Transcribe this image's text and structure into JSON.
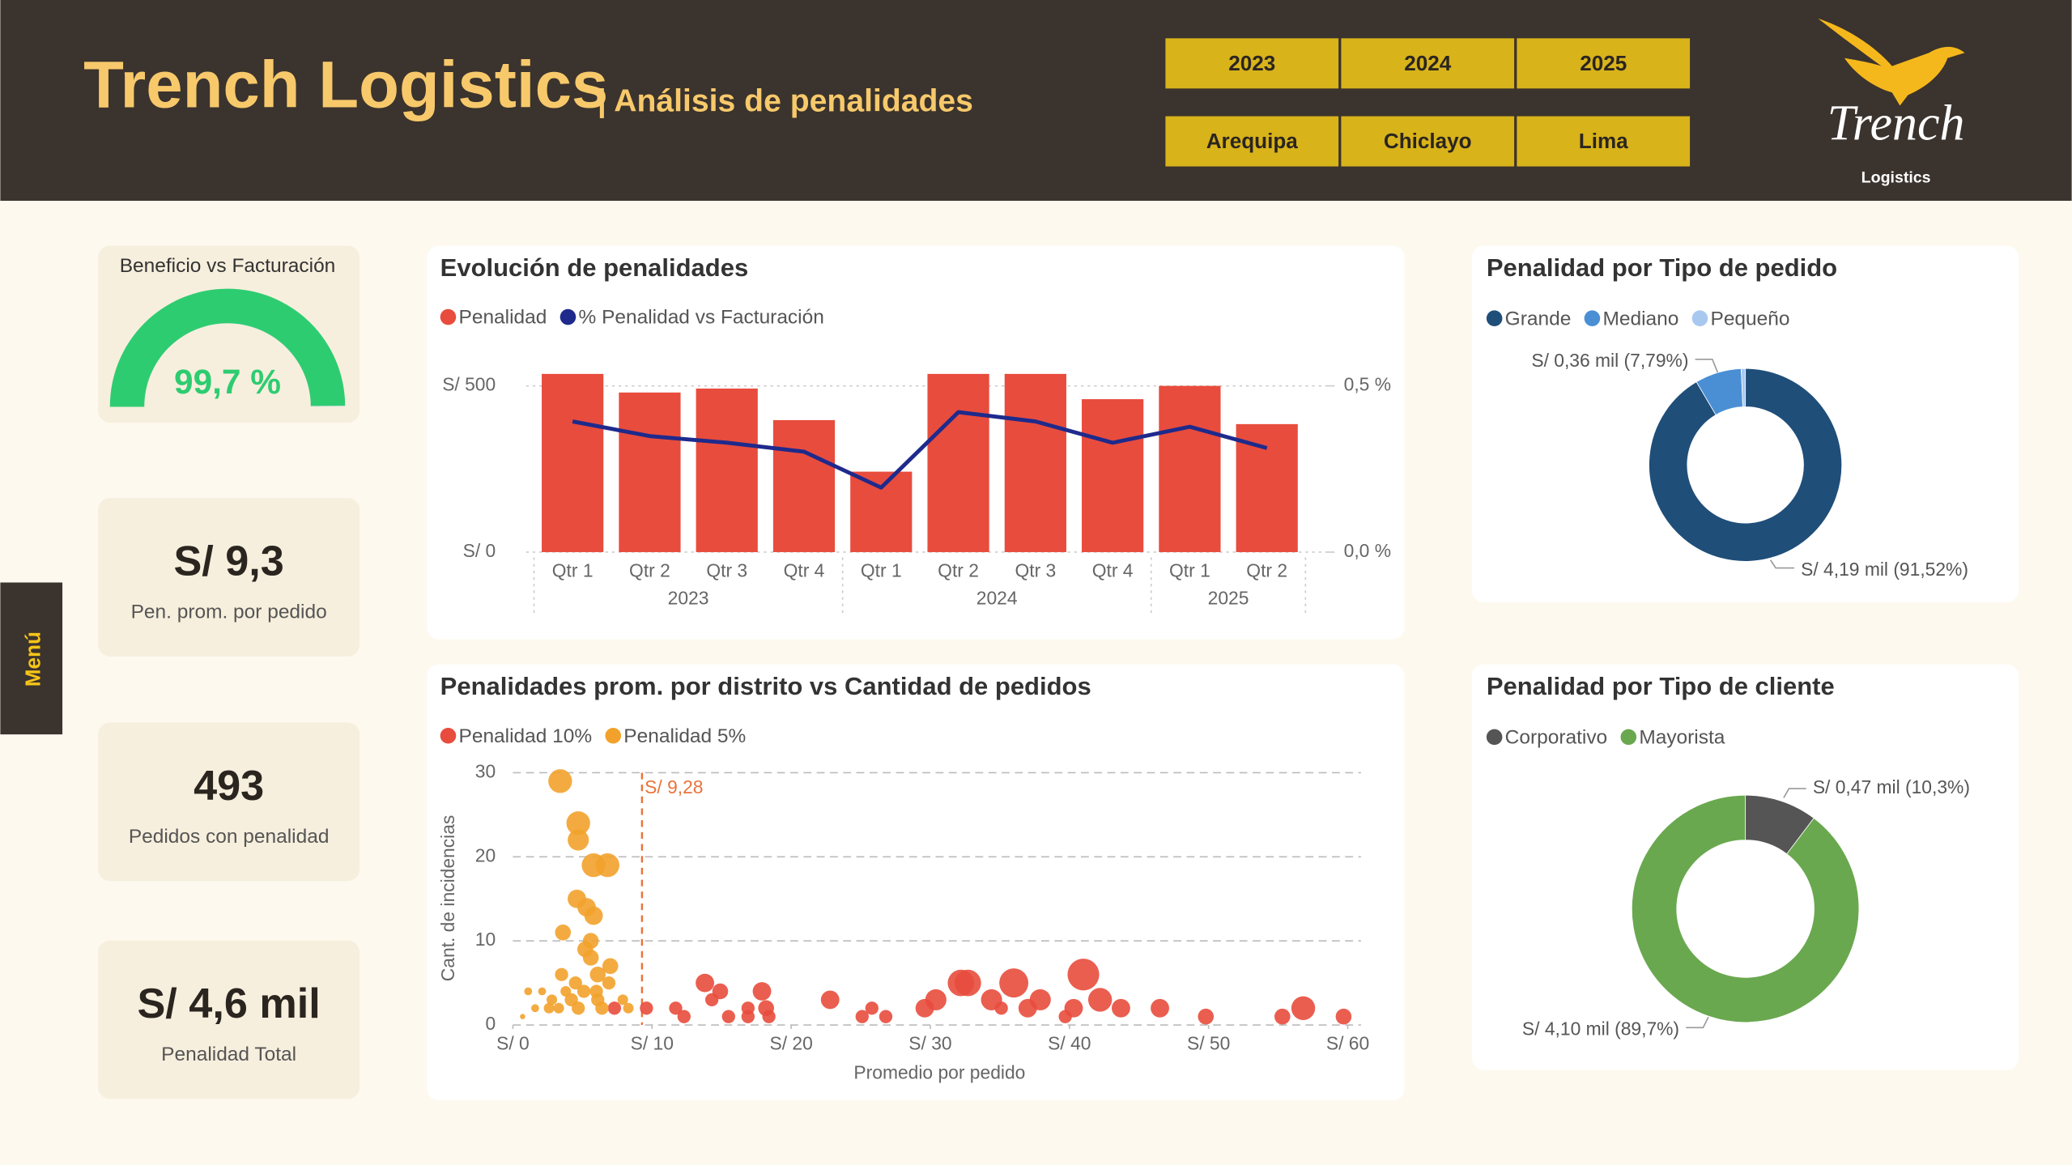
{
  "header": {
    "title": "Trench Logistics",
    "subtitle": "| Análisis de penalidades",
    "logo_name": "Trench",
    "logo_tagline": "Logistics"
  },
  "filters": {
    "years": [
      "2023",
      "2024",
      "2025"
    ],
    "cities": [
      "Arequipa",
      "Chiclayo",
      "Lima"
    ]
  },
  "menu": "Menú",
  "kpis": [
    {
      "value": "S/ 9,3",
      "label": "Pen. prom. por pedido"
    },
    {
      "value": "493",
      "label": "Pedidos con penalidad"
    },
    {
      "value": "S/ 4,6 mil",
      "label": "Penalidad Total"
    }
  ],
  "chart_data": [
    {
      "type": "gauge",
      "title": "Beneficio vs Facturación",
      "value": 99.7,
      "value_label": "99,7 %",
      "ylim": [
        0,
        100
      ],
      "color": "#2ecc71"
    },
    {
      "type": "combo",
      "title": "Evolución de penalidades",
      "categories": [
        "Qtr 1",
        "Qtr 2",
        "Qtr 3",
        "Qtr 4",
        "Qtr 1",
        "Qtr 2",
        "Qtr 3",
        "Qtr 4",
        "Qtr 1",
        "Qtr 2"
      ],
      "category_groups": [
        "2023",
        "2023",
        "2023",
        "2023",
        "2024",
        "2024",
        "2024",
        "2024",
        "2025",
        "2025"
      ],
      "series": [
        {
          "name": "Penalidad",
          "type": "bar",
          "color": "#e84c3d",
          "values": [
            536,
            480,
            492,
            397,
            242,
            536,
            536,
            460,
            500,
            385
          ]
        },
        {
          "name": "% Penalidad vs Facturación",
          "type": "line",
          "axis": "y2",
          "color": "#1e2a8c",
          "values": [
            0.393,
            0.349,
            0.329,
            0.302,
            0.194,
            0.421,
            0.393,
            0.329,
            0.377,
            0.313
          ]
        }
      ],
      "ylim": [
        0,
        580
      ],
      "yticks": [
        {
          "value": 0,
          "label": "S/ 0"
        },
        {
          "value": 500,
          "label": "S/ 500"
        }
      ],
      "y2lim": [
        0,
        0.58
      ],
      "y2ticks": [
        {
          "value": 0,
          "label": "0,0 %"
        },
        {
          "value": 0.5,
          "label": "0,5 %"
        }
      ],
      "grid": true
    },
    {
      "type": "scatter",
      "title": "Penalidades prom. por distrito vs Cantidad de pedidos",
      "x_label": "Promedio por pedido",
      "y_label": "Cant. de incidencias",
      "series": [
        {
          "name": "Penalidad 10%",
          "color": "#e84c3d",
          "x": [
            7.3,
            9.6,
            11.7,
            12.3,
            13.8,
            14.3,
            14.9,
            15.5,
            16.9,
            16.9,
            17.9,
            18.2,
            18.4,
            22.8,
            25.1,
            25.8,
            26.8,
            29.6,
            30.4,
            32.2,
            32.7,
            34.4,
            35.1,
            36.0,
            37.0,
            37.9,
            39.7,
            40.3,
            41.0,
            42.2,
            43.7,
            46.5,
            49.8,
            55.3,
            56.8,
            59.7
          ],
          "values": [
            2,
            2,
            2,
            1,
            5,
            3,
            4,
            1,
            2,
            1,
            4,
            2,
            1,
            3,
            1,
            2,
            1,
            2,
            3,
            5,
            5,
            3,
            2,
            5,
            2,
            3,
            1,
            2,
            6,
            3,
            2,
            2,
            1,
            1,
            2,
            1
          ],
          "sizes": [
            5,
            5,
            5,
            5,
            7,
            5,
            6,
            5,
            5,
            5,
            7,
            6,
            5,
            7,
            5,
            5,
            5,
            7,
            8,
            10,
            10,
            8,
            5,
            11,
            7,
            8,
            5,
            7,
            12,
            9,
            7,
            7,
            6,
            6,
            9,
            6
          ]
        },
        {
          "name": "Penalidad 5%",
          "color": "#f2a22c",
          "x": [
            3.4,
            4.7,
            4.7,
            5.8,
            6.8,
            4.6,
            5.3,
            5.8,
            3.6,
            5.6,
            5.2,
            5.6,
            7.0,
            3.5,
            6.1,
            6.9,
            4.5,
            3.8,
            6.0,
            5.1,
            2.1,
            1.1,
            2.8,
            4.2,
            6.1,
            1.6,
            2.6,
            3.3,
            4.7,
            6.4,
            0.7,
            8.3,
            7.9
          ],
          "values": [
            29,
            24,
            22,
            19,
            19,
            15,
            14,
            13,
            11,
            10,
            9,
            8,
            7,
            6,
            6,
            5,
            5,
            4,
            4,
            4,
            4,
            4,
            3,
            3,
            3,
            2,
            2,
            2,
            2,
            2,
            1,
            2,
            3
          ],
          "sizes": [
            9,
            9,
            8,
            9,
            9,
            7,
            7,
            7,
            6,
            6,
            6,
            6,
            6,
            5,
            6,
            5,
            5,
            4,
            5,
            5,
            3,
            3,
            4,
            5,
            5,
            3,
            4,
            4,
            5,
            5,
            2,
            4,
            4
          ]
        }
      ],
      "xlim": [
        0,
        60
      ],
      "xticks": [
        {
          "value": 0,
          "label": "S/ 0"
        },
        {
          "value": 10,
          "label": "S/ 10"
        },
        {
          "value": 20,
          "label": "S/ 20"
        },
        {
          "value": 30,
          "label": "S/ 30"
        },
        {
          "value": 40,
          "label": "S/ 40"
        },
        {
          "value": 50,
          "label": "S/ 50"
        },
        {
          "value": 60,
          "label": "S/ 60"
        }
      ],
      "ylim": [
        0,
        30
      ],
      "yticks": [
        0,
        10,
        20,
        30
      ],
      "grid": true,
      "reference_line": {
        "value": 9.28,
        "label": "S/ 9,28",
        "color": "#e8743b"
      }
    },
    {
      "type": "donut",
      "title": "Penalidad por Tipo de pedido",
      "categories": [
        "Grande",
        "Mediano",
        "Pequeño"
      ],
      "values": [
        91.52,
        7.79,
        0.69
      ],
      "value_labels": [
        "S/ 4,19 mil (91,52%)",
        "S/ 0,36 mil (7,79%)",
        null
      ],
      "colors": [
        "#1f4e79",
        "#4a8fd4",
        "#a9c8f0"
      ]
    },
    {
      "type": "donut",
      "title": "Penalidad por Tipo de cliente",
      "categories": [
        "Corporativo",
        "Mayorista"
      ],
      "values": [
        10.3,
        89.7
      ],
      "value_labels": [
        "S/ 0,47 mil (10,3%)",
        "S/ 4,10 mil (89,7%)"
      ],
      "colors": [
        "#555555",
        "#6aa84f"
      ]
    }
  ]
}
